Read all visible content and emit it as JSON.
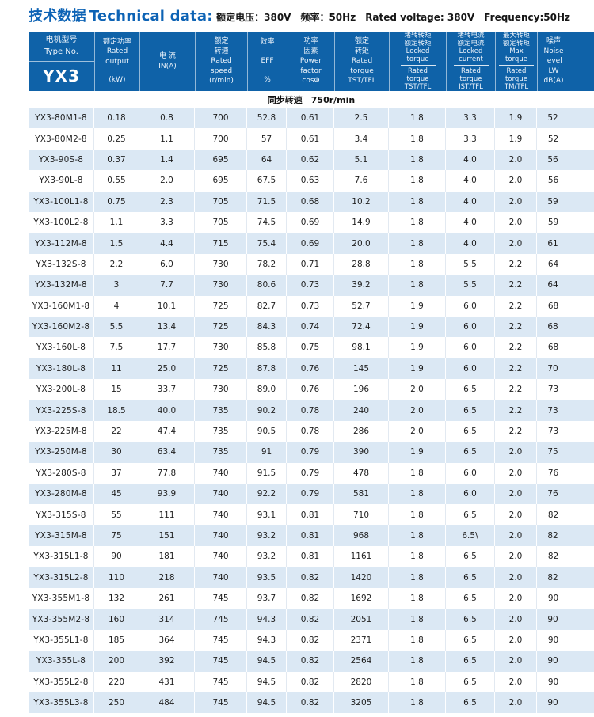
{
  "page": {
    "title_zh": "技术数据",
    "title_en": "Technical data:",
    "subtitle": "额定电压：380V　频率：50Hz　Rated voltage: 380V　Frequency:50Hz"
  },
  "colors": {
    "header_blue": "#0f62a8",
    "title_blue": "#0d63b5",
    "alt_row_blue": "#dbe8f4"
  },
  "table": {
    "model_header": {
      "zh": "电机型号",
      "en": "Type No.",
      "series": "YX3"
    },
    "group_label": "同步转速　750r/min",
    "columns": [
      {
        "name": "rated-output",
        "type": "spread",
        "groups": [
          [
            "额定功率",
            "Rated",
            "output"
          ],
          [
            "(kW)"
          ]
        ]
      },
      {
        "name": "current",
        "type": "stack",
        "lines": [
          "电  流",
          "IN(A)"
        ]
      },
      {
        "name": "rated-speed",
        "type": "stack",
        "lines": [
          "额定",
          "转速",
          "Rated",
          "speed",
          "(r/min)"
        ]
      },
      {
        "name": "efficiency",
        "type": "spread",
        "groups": [
          [
            "效率"
          ],
          [
            "EFF"
          ],
          [
            "%"
          ]
        ]
      },
      {
        "name": "power-factor",
        "type": "stack",
        "lines": [
          "功率",
          "因素",
          "Power",
          "factor",
          "cosΦ"
        ]
      },
      {
        "name": "rated-torque",
        "type": "stack",
        "lines": [
          "额定",
          "转矩",
          "Rated",
          "torque",
          "TST/TFL"
        ]
      },
      {
        "name": "locked-torque-ratio",
        "type": "fraction",
        "zh": [
          "堵转转矩",
          "额定转矩"
        ],
        "num": [
          "Locked",
          "torque"
        ],
        "den": [
          "Rated",
          "torque"
        ],
        "label": "TST/TFL"
      },
      {
        "name": "locked-current-ratio",
        "type": "fraction",
        "zh": [
          "堵转电流",
          "额定电流"
        ],
        "num": [
          "Locked",
          "current"
        ],
        "den": [
          "Rated",
          "torque"
        ],
        "label": "IST/TFL"
      },
      {
        "name": "max-torque-ratio",
        "type": "fraction",
        "zh": [
          "最大转矩",
          "额定转矩"
        ],
        "num": [
          "Max",
          "torque"
        ],
        "den": [
          "Rated",
          "torque"
        ],
        "label": "TM/TFL"
      },
      {
        "name": "noise",
        "type": "stack",
        "lines": [
          "噪声",
          "Noise",
          "level",
          "LW",
          "dB(A)"
        ]
      }
    ],
    "rows": [
      [
        "YX3-80M1-8",
        "0.18",
        "0.8",
        "700",
        "52.8",
        "0.61",
        "2.5",
        "1.8",
        "3.3",
        "1.9",
        "52"
      ],
      [
        "YX3-80M2-8",
        "0.25",
        "1.1",
        "700",
        "57",
        "0.61",
        "3.4",
        "1.8",
        "3.3",
        "1.9",
        "52"
      ],
      [
        "YX3-90S-8",
        "0.37",
        "1.4",
        "695",
        "64",
        "0.62",
        "5.1",
        "1.8",
        "4.0",
        "2.0",
        "56"
      ],
      [
        "YX3-90L-8",
        "0.55",
        "2.0",
        "695",
        "67.5",
        "0.63",
        "7.6",
        "1.8",
        "4.0",
        "2.0",
        "56"
      ],
      [
        "YX3-100L1-8",
        "0.75",
        "2.3",
        "705",
        "71.5",
        "0.68",
        "10.2",
        "1.8",
        "4.0",
        "2.0",
        "59"
      ],
      [
        "YX3-100L2-8",
        "1.1",
        "3.3",
        "705",
        "74.5",
        "0.69",
        "14.9",
        "1.8",
        "4.0",
        "2.0",
        "59"
      ],
      [
        "YX3-112M-8",
        "1.5",
        "4.4",
        "715",
        "75.4",
        "0.69",
        "20.0",
        "1.8",
        "4.0",
        "2.0",
        "61"
      ],
      [
        "YX3-132S-8",
        "2.2",
        "6.0",
        "730",
        "78.2",
        "0.71",
        "28.8",
        "1.8",
        "5.5",
        "2.2",
        "64"
      ],
      [
        "YX3-132M-8",
        "3",
        "7.7",
        "730",
        "80.6",
        "0.73",
        "39.2",
        "1.8",
        "5.5",
        "2.2",
        "64"
      ],
      [
        "YX3-160M1-8",
        "4",
        "10.1",
        "725",
        "82.7",
        "0.73",
        "52.7",
        "1.9",
        "6.0",
        "2.2",
        "68"
      ],
      [
        "YX3-160M2-8",
        "5.5",
        "13.4",
        "725",
        "84.3",
        "0.74",
        "72.4",
        "1.9",
        "6.0",
        "2.2",
        "68"
      ],
      [
        "YX3-160L-8",
        "7.5",
        "17.7",
        "730",
        "85.8",
        "0.75",
        "98.1",
        "1.9",
        "6.0",
        "2.2",
        "68"
      ],
      [
        "YX3-180L-8",
        "11",
        "25.0",
        "725",
        "87.8",
        "0.76",
        "145",
        "1.9",
        "6.0",
        "2.2",
        "70"
      ],
      [
        "YX3-200L-8",
        "15",
        "33.7",
        "730",
        "89.0",
        "0.76",
        "196",
        "2.0",
        "6.5",
        "2.2",
        "73"
      ],
      [
        "YX3-225S-8",
        "18.5",
        "40.0",
        "735",
        "90.2",
        "0.78",
        "240",
        "2.0",
        "6.5",
        "2.2",
        "73"
      ],
      [
        "YX3-225M-8",
        "22",
        "47.4",
        "735",
        "90.5",
        "0.78",
        "286",
        "2.0",
        "6.5",
        "2.2",
        "73"
      ],
      [
        "YX3-250M-8",
        "30",
        "63.4",
        "735",
        "91",
        "0.79",
        "390",
        "1.9",
        "6.5",
        "2.0",
        "75"
      ],
      [
        "YX3-280S-8",
        "37",
        "77.8",
        "740",
        "91.5",
        "0.79",
        "478",
        "1.8",
        "6.0",
        "2.0",
        "76"
      ],
      [
        "YX3-280M-8",
        "45",
        "93.9",
        "740",
        "92.2",
        "0.79",
        "581",
        "1.8",
        "6.0",
        "2.0",
        "76"
      ],
      [
        "YX3-315S-8",
        "55",
        "111",
        "740",
        "93.1",
        "0.81",
        "710",
        "1.8",
        "6.5",
        "2.0",
        "82"
      ],
      [
        "YX3-315M-8",
        "75",
        "151",
        "740",
        "93.2",
        "0.81",
        "968",
        "1.8",
        "6.5\\",
        "2.0",
        "82"
      ],
      [
        "YX3-315L1-8",
        "90",
        "181",
        "740",
        "93.2",
        "0.81",
        "1161",
        "1.8",
        "6.5",
        "2.0",
        "82"
      ],
      [
        "YX3-315L2-8",
        "110",
        "218",
        "740",
        "93.5",
        "0.82",
        "1420",
        "1.8",
        "6.5",
        "2.0",
        "82"
      ],
      [
        "YX3-355M1-8",
        "132",
        "261",
        "745",
        "93.7",
        "0.82",
        "1692",
        "1.8",
        "6.5",
        "2.0",
        "90"
      ],
      [
        "YX3-355M2-8",
        "160",
        "314",
        "745",
        "94.3",
        "0.82",
        "2051",
        "1.8",
        "6.5",
        "2.0",
        "90"
      ],
      [
        "YX3-355L1-8",
        "185",
        "364",
        "745",
        "94.3",
        "0.82",
        "2371",
        "1.8",
        "6.5",
        "2.0",
        "90"
      ],
      [
        "YX3-355L-8",
        "200",
        "392",
        "745",
        "94.5",
        "0.82",
        "2564",
        "1.8",
        "6.5",
        "2.0",
        "90"
      ],
      [
        "YX3-355L2-8",
        "220",
        "431",
        "745",
        "94.5",
        "0.82",
        "2820",
        "1.8",
        "6.5",
        "2.0",
        "90"
      ],
      [
        "YX3-355L3-8",
        "250",
        "484",
        "745",
        "94.5",
        "0.82",
        "3205",
        "1.8",
        "6.5",
        "2.0",
        "90"
      ]
    ]
  }
}
